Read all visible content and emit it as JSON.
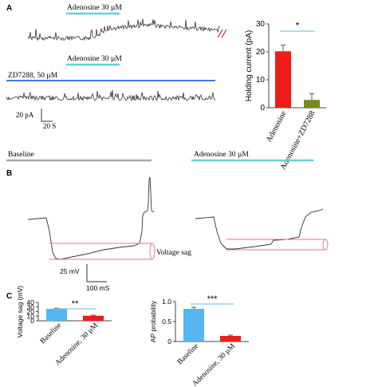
{
  "panels": {
    "A": {
      "label": "A",
      "drug_bar_label_1": "Adenosine 30 µM",
      "drug_bar_label_2": "Adenosine 30 µM",
      "zd_bar_label": "ZD7288, 50 µM",
      "scale_current": "20 pA",
      "scale_time": "20 S",
      "colors": {
        "adenosine_bar": "#5fd3d3",
        "zd_bar": "#3b7fe0",
        "trace": "#1a1a1a"
      }
    },
    "B": {
      "label": "B",
      "baseline_label": "Baseline",
      "adenosine_label": "Adenosine 30 µM",
      "sag_label": "Voltage sag",
      "scale_voltage": "25 mV",
      "scale_time": "100 mS",
      "colors": {
        "baseline_bar": "#a6a6a6",
        "adenosine_bar": "#5fd3d3",
        "sag_marker": "#e07a8a"
      }
    },
    "C": {
      "label": "C"
    }
  },
  "chart_data": [
    {
      "type": "bar",
      "ylabel": "Holding current (pA)",
      "categories": [
        "Adenosine",
        "Adenosine+ZD7288"
      ],
      "values": [
        20.2,
        2.8
      ],
      "errors": [
        2.2,
        2.2
      ],
      "colors": [
        "#ee1c1c",
        "#7a8a1c"
      ],
      "yticks": [
        "0",
        "10",
        "20",
        "30"
      ],
      "ylim": [
        0,
        30
      ],
      "significance": "*"
    },
    {
      "type": "bar",
      "ylabel": "Voltage sag (mV)",
      "categories": [
        "Baseline",
        "Adenosine, 30 µM"
      ],
      "values": [
        26,
        11
      ],
      "errors": [
        1.5,
        1.0
      ],
      "colors": [
        "#55b6f0",
        "#ee1c1c"
      ],
      "yticks": [
        "0",
        "10",
        "20",
        "30",
        "40"
      ],
      "ylim": [
        0,
        40
      ],
      "significance": "**"
    },
    {
      "type": "bar",
      "ylabel": "AP probability",
      "categories": [
        "Baseline",
        "Adenosine, 30 µM"
      ],
      "values": [
        0.82,
        0.14
      ],
      "errors": [
        0.04,
        0.02
      ],
      "colors": [
        "#55b6f0",
        "#ee1c1c"
      ],
      "yticks": [
        "0",
        "0.5",
        "1.0"
      ],
      "ylim": [
        0,
        1.0
      ],
      "significance": "***"
    }
  ]
}
